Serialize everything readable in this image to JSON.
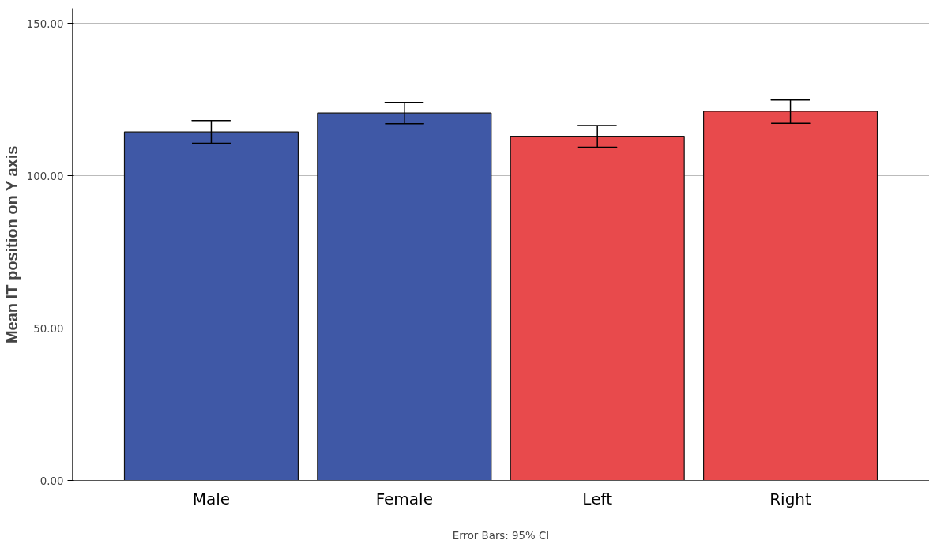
{
  "chart_data": {
    "type": "bar",
    "ylabel": "Mean IT position on Y axis",
    "categories": [
      "Male",
      "Female",
      "Left",
      "Right"
    ],
    "values": [
      114.4,
      120.6,
      113.0,
      121.2
    ],
    "colors": [
      "#3f58a6",
      "#3f58a6",
      "#e84a4c",
      "#e84a4c"
    ],
    "errors": [
      [
        110.7,
        118.1
      ],
      [
        117.1,
        124.1
      ],
      [
        109.4,
        116.5
      ],
      [
        117.2,
        124.9
      ]
    ],
    "ylim": [
      0,
      155
    ],
    "yticks": [
      {
        "value": 0,
        "label": "0.00"
      },
      {
        "value": 50,
        "label": "50.00"
      },
      {
        "value": 100,
        "label": "100.00"
      },
      {
        "value": 150,
        "label": "150.00"
      }
    ],
    "grid": "y",
    "annotations": [
      "Error Bars: 95% CI"
    ]
  }
}
